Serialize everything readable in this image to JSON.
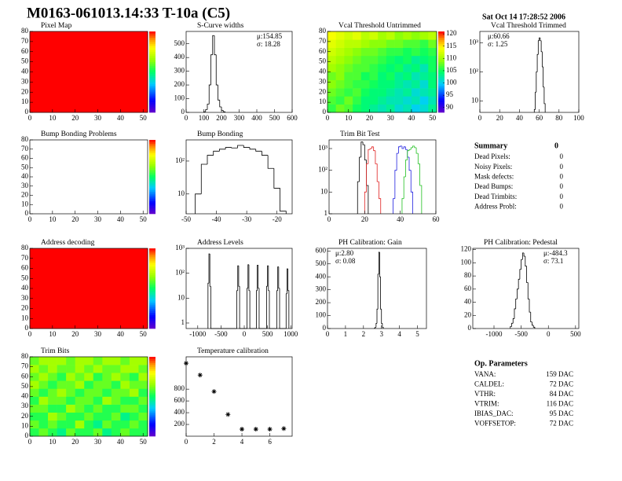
{
  "title": "M0163-061013.14:33 T-10a (C5)",
  "date": "Sat Oct 14 17:28:52 2006",
  "chart_data": [
    {
      "type": "heatmap",
      "title": "Pixel Map",
      "xlim": [
        0,
        52
      ],
      "ylim": [
        0,
        80
      ],
      "xticks": [
        0,
        10,
        20,
        30,
        40,
        50
      ],
      "yticks": [
        0,
        10,
        20,
        30,
        40,
        50,
        60,
        70,
        80
      ],
      "zlim": [
        0,
        10
      ],
      "values": [
        [
          10
        ]
      ]
    },
    {
      "type": "histogram",
      "title": "S-Curve widths",
      "xlim": [
        0,
        600
      ],
      "ylim": [
        0,
        590
      ],
      "xticks": [
        0,
        100,
        200,
        300,
        400,
        500,
        600
      ],
      "yticks": [
        0,
        100,
        200,
        300,
        400,
        500
      ],
      "annotations": [
        "μ:154.85",
        "σ: 18.28"
      ],
      "color": "#000000",
      "bins": [
        100,
        110,
        120,
        130,
        140,
        150,
        160,
        170,
        180,
        190,
        200,
        210,
        220
      ],
      "values": [
        5,
        20,
        60,
        200,
        420,
        560,
        420,
        200,
        90,
        40,
        15,
        5
      ]
    },
    {
      "type": "heatmap",
      "title": "Vcal Threshold Untrimmed",
      "xlim": [
        0,
        52
      ],
      "ylim": [
        0,
        80
      ],
      "xticks": [
        0,
        10,
        20,
        30,
        40,
        50
      ],
      "yticks": [
        0,
        10,
        20,
        30,
        40,
        50,
        60,
        70,
        80
      ],
      "zlim": [
        88,
        121
      ],
      "zticks": [
        90,
        95,
        100,
        105,
        110,
        115,
        120
      ],
      "values": [
        [
          106,
          108,
          107,
          105,
          104,
          103,
          102,
          103,
          101,
          102,
          100,
          101,
          103
        ],
        [
          107,
          106,
          108,
          106,
          104,
          104,
          103,
          102,
          102,
          101,
          102,
          100,
          102
        ],
        [
          108,
          107,
          106,
          107,
          105,
          104,
          104,
          103,
          102,
          103,
          101,
          102,
          103
        ],
        [
          109,
          108,
          107,
          106,
          106,
          105,
          104,
          104,
          103,
          102,
          103,
          101,
          104
        ],
        [
          108,
          109,
          107,
          107,
          105,
          106,
          104,
          105,
          103,
          104,
          102,
          103,
          104
        ],
        [
          110,
          109,
          108,
          107,
          107,
          106,
          105,
          104,
          105,
          103,
          104,
          102,
          105
        ],
        [
          111,
          110,
          109,
          108,
          107,
          107,
          106,
          105,
          104,
          105,
          103,
          104,
          105
        ],
        [
          112,
          111,
          110,
          109,
          108,
          108,
          107,
          106,
          106,
          105,
          106,
          105,
          106
        ],
        [
          113,
          112,
          111,
          111,
          110,
          109,
          109,
          108,
          108,
          107,
          107,
          106,
          108
        ],
        [
          114,
          113,
          112,
          113,
          111,
          112,
          110,
          111,
          109,
          110,
          109,
          110,
          111
        ]
      ]
    },
    {
      "type": "histogram",
      "title": "Vcal Threshold Trimmed",
      "ylog": true,
      "xlim": [
        0,
        100
      ],
      "ylim": [
        4,
        2500
      ],
      "xticks": [
        0,
        20,
        40,
        60,
        80,
        100
      ],
      "yticks": [
        10,
        {
          "value": 100,
          "label": "10²"
        },
        {
          "value": 1000,
          "label": "10³"
        }
      ],
      "annotations": [
        "μ:60.66",
        "σ: 1.25"
      ],
      "color": "#000000",
      "bins": [
        55,
        56,
        57,
        58,
        59,
        60,
        61,
        62,
        63,
        64,
        65,
        66
      ],
      "values": [
        5,
        20,
        100,
        400,
        1200,
        1500,
        1200,
        500,
        150,
        30,
        8
      ]
    },
    {
      "type": "heatmap",
      "title": "Bump Bonding Problems",
      "xlim": [
        0,
        52
      ],
      "ylim": [
        0,
        80
      ],
      "xticks": [
        0,
        10,
        20,
        30,
        40,
        50
      ],
      "yticks": [
        0,
        10,
        20,
        30,
        40,
        50,
        60,
        70,
        80
      ],
      "zlim": [
        0,
        10
      ],
      "values": []
    },
    {
      "type": "histogram",
      "title": "Bump Bonding",
      "ylog": true,
      "xlim": [
        -50,
        -15
      ],
      "ylim": [
        2.5,
        440
      ],
      "xticks": [
        -50,
        -40,
        -30,
        -20
      ],
      "yticks": [
        10,
        {
          "value": 100,
          "label": "10²"
        }
      ],
      "color": "#000000",
      "bins": [
        -47,
        -45,
        -43,
        -41,
        -39,
        -37,
        -35,
        -33,
        -31,
        -29,
        -27,
        -25,
        -23,
        -21,
        -19,
        -17
      ],
      "values": [
        10,
        80,
        150,
        200,
        230,
        260,
        250,
        300,
        260,
        230,
        200,
        150,
        60,
        15,
        3
      ]
    },
    {
      "type": "histogram",
      "title": "Trim Bit Test",
      "ylog": true,
      "xlim": [
        0,
        60
      ],
      "ylim": [
        1,
        2500
      ],
      "xticks": [
        0,
        20,
        40,
        60
      ],
      "yticks": [
        1,
        10,
        {
          "value": 100,
          "label": "10²"
        },
        {
          "value": 1000,
          "label": "10³"
        }
      ],
      "series": [
        {
          "color": "#000000",
          "bins": [
            16,
            17,
            18,
            19,
            20,
            21,
            22
          ],
          "values": [
            30,
            400,
            2000,
            1500,
            300,
            20
          ]
        },
        {
          "color": "#e02020",
          "bins": [
            20,
            21,
            22,
            23,
            24,
            25,
            26,
            27,
            28,
            29
          ],
          "values": [
            10,
            200,
            900,
            1000,
            1200,
            800,
            200,
            30,
            5
          ]
        },
        {
          "color": "#2020e0",
          "bins": [
            36,
            37,
            38,
            39,
            40,
            41,
            42,
            43,
            44,
            45,
            46,
            47
          ],
          "values": [
            5,
            100,
            600,
            1200,
            1300,
            1000,
            1200,
            900,
            400,
            100,
            10
          ]
        },
        {
          "color": "#20c020",
          "bins": [
            41,
            42,
            43,
            44,
            45,
            46,
            47,
            48,
            49,
            50,
            51,
            52
          ],
          "values": [
            5,
            50,
            300,
            800,
            900,
            1100,
            1300,
            1100,
            600,
            200,
            20
          ]
        }
      ]
    },
    {
      "type": "heatmap",
      "title": "Address decoding",
      "xlim": [
        0,
        52
      ],
      "ylim": [
        0,
        80
      ],
      "xticks": [
        0,
        10,
        20,
        30,
        40,
        50
      ],
      "yticks": [
        0,
        10,
        20,
        30,
        40,
        50,
        60,
        70,
        80
      ],
      "zlim": [
        0,
        10
      ],
      "values": [
        [
          10
        ]
      ]
    },
    {
      "type": "histogram",
      "title": "Address Levels",
      "ylog": true,
      "xlim": [
        -1250,
        1030
      ],
      "ylim": [
        0.6,
        1000
      ],
      "xticks": [
        -1000,
        -500,
        0,
        500,
        1000
      ],
      "yticks": [
        1,
        10,
        {
          "value": 100,
          "label": "10²"
        },
        {
          "value": 1000,
          "label": "10³"
        }
      ],
      "color": "#000000",
      "bins": [
        -780,
        -760,
        -740,
        -720,
        -160,
        -140,
        -120,
        -100,
        60,
        80,
        100,
        120,
        260,
        280,
        300,
        320,
        480,
        500,
        520,
        540,
        700,
        720,
        740,
        760,
        900,
        920,
        940,
        960
      ],
      "values": [
        40,
        600,
        30,
        0,
        20,
        200,
        30,
        0,
        25,
        220,
        20,
        0,
        20,
        210,
        25,
        0,
        30,
        200,
        20,
        0,
        20,
        180,
        25,
        0,
        15,
        150,
        20
      ]
    },
    {
      "type": "histogram",
      "title": "PH Calibration: Gain",
      "xlim": [
        0,
        5.5
      ],
      "ylim": [
        0,
        620
      ],
      "xticks": [
        0,
        1,
        2,
        3,
        4,
        5
      ],
      "yticks": [
        0,
        100,
        200,
        300,
        400,
        500,
        600
      ],
      "annotations": [
        "μ:2.80",
        "σ: 0.08"
      ],
      "color": "#000000",
      "bins": [
        2.6,
        2.65,
        2.7,
        2.75,
        2.8,
        2.85,
        2.9,
        2.95,
        3.0,
        3.05,
        3.1
      ],
      "values": [
        2,
        10,
        40,
        150,
        420,
        590,
        400,
        150,
        40,
        10
      ]
    },
    {
      "type": "histogram",
      "title": "PH Calibration: Pedestal",
      "xlim": [
        -1390,
        560
      ],
      "ylim": [
        0,
        122
      ],
      "xticks": [
        -1000,
        -500,
        0,
        500
      ],
      "yticks": [
        0,
        20,
        40,
        60,
        80,
        100,
        120
      ],
      "annotations": [
        "μ:-484.3",
        "σ: 73.1"
      ],
      "color": "#000000",
      "bins": [
        -700,
        -675,
        -650,
        -625,
        -600,
        -575,
        -550,
        -525,
        -500,
        -475,
        -450,
        -425,
        -400,
        -375,
        -350,
        -325,
        -300,
        -275,
        -250
      ],
      "values": [
        3,
        8,
        15,
        30,
        45,
        60,
        75,
        90,
        105,
        115,
        110,
        95,
        70,
        45,
        25,
        10,
        5,
        2
      ]
    },
    {
      "type": "heatmap",
      "title": "Trim Bits",
      "xlim": [
        0,
        52
      ],
      "ylim": [
        0,
        80
      ],
      "xticks": [
        0,
        10,
        20,
        30,
        40,
        50
      ],
      "yticks": [
        0,
        10,
        20,
        30,
        40,
        50,
        60,
        70,
        80
      ],
      "zlim": [
        0,
        15
      ],
      "values": [
        [
          8,
          9,
          8,
          7,
          9,
          8,
          8,
          9,
          7,
          8,
          9,
          8,
          8
        ],
        [
          9,
          8,
          9,
          8,
          8,
          10,
          8,
          7,
          9,
          8,
          8,
          9,
          8
        ],
        [
          8,
          8,
          10,
          9,
          8,
          8,
          9,
          8,
          8,
          9,
          7,
          8,
          9
        ],
        [
          9,
          9,
          8,
          8,
          10,
          9,
          8,
          9,
          8,
          8,
          9,
          9,
          8
        ],
        [
          8,
          10,
          9,
          9,
          8,
          9,
          9,
          8,
          10,
          9,
          8,
          8,
          9
        ],
        [
          9,
          8,
          9,
          10,
          9,
          8,
          9,
          9,
          8,
          9,
          9,
          10,
          8
        ],
        [
          10,
          9,
          8,
          9,
          9,
          10,
          8,
          9,
          9,
          8,
          10,
          9,
          9
        ],
        [
          9,
          10,
          9,
          8,
          10,
          9,
          10,
          8,
          9,
          10,
          9,
          8,
          10
        ],
        [
          10,
          9,
          10,
          9,
          9,
          10,
          9,
          10,
          9,
          9,
          10,
          10,
          9
        ],
        [
          9,
          10,
          10,
          10,
          9,
          10,
          10,
          9,
          10,
          10,
          9,
          10,
          10
        ]
      ]
    },
    {
      "type": "scatter",
      "title": "Temperature calibration",
      "xlim": [
        0,
        7.6
      ],
      "ylim": [
        0,
        1350
      ],
      "xticks": [
        0,
        2,
        4,
        6
      ],
      "yticks": [
        200,
        400,
        600,
        800
      ],
      "color": "#000000",
      "x": [
        0,
        1,
        2,
        3,
        4,
        5,
        6,
        7
      ],
      "y": [
        1240,
        1040,
        760,
        370,
        120,
        120,
        120,
        130
      ]
    }
  ],
  "summary": {
    "title": "Summary",
    "total": "0",
    "rows": [
      [
        "Dead Pixels:",
        "0"
      ],
      [
        "Noisy Pixels:",
        "0"
      ],
      [
        "Mask defects:",
        "0"
      ],
      [
        "Dead Bumps:",
        "0"
      ],
      [
        "Dead Trimbits:",
        "0"
      ],
      [
        "Address Probl:",
        "0"
      ]
    ]
  },
  "op_parameters": {
    "title": "Op. Parameters",
    "rows": [
      [
        "VANA:",
        "159 DAC"
      ],
      [
        "CALDEL:",
        "72 DAC"
      ],
      [
        "VTHR:",
        "84 DAC"
      ],
      [
        "VTRIM:",
        "116 DAC"
      ],
      [
        "IBIAS_DAC:",
        "95 DAC"
      ],
      [
        "VOFFSETOP:",
        "72 DAC"
      ]
    ]
  }
}
